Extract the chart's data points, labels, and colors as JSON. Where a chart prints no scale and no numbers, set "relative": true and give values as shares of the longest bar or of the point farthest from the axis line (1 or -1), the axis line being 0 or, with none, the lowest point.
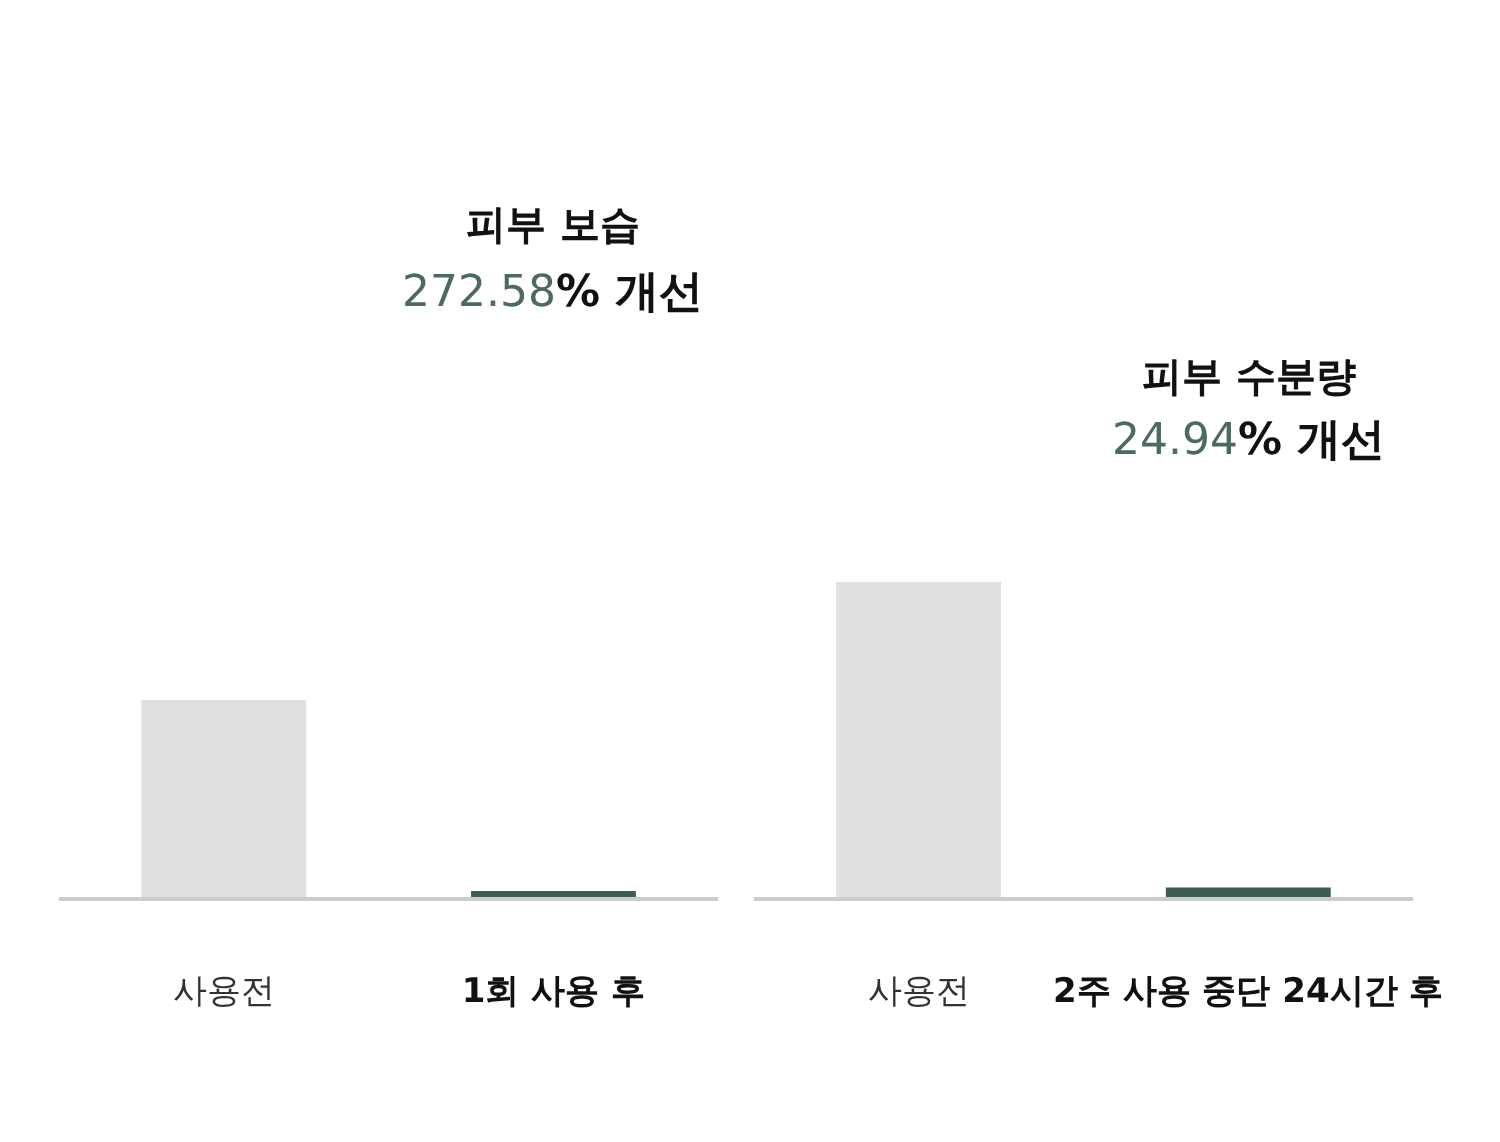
{
  "chart_data": [
    {
      "type": "bar",
      "title": "피부 보습",
      "subtitle": "272.58% 개선",
      "categories": [
        "사용전",
        "1회 사용 후"
      ],
      "relative": true,
      "values": [
        1,
        0.03
      ],
      "colors": [
        "#e0e0e0",
        "#3d5c55"
      ],
      "tick_labels": "x"
    },
    {
      "type": "bar",
      "title": "피부 수분량",
      "subtitle": "24.94% 개선",
      "categories": [
        "사용전",
        "2주 사용 중단 24시간 후"
      ],
      "relative": true,
      "values": [
        1,
        0.03
      ],
      "colors": [
        "#e0e0e0",
        "#3d5c55"
      ],
      "tick_labels": "x"
    }
  ]
}
